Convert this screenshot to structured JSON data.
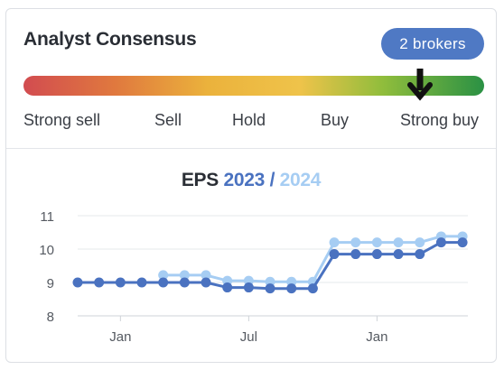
{
  "consensus": {
    "title": "Analyst Consensus",
    "brokers_label": "2  brokers",
    "scale_labels": [
      "Strong sell",
      "Sell",
      "Hold",
      "Buy",
      "Strong buy"
    ],
    "marker_position": 0.865,
    "marker_icon": "arrow-down-icon"
  },
  "eps": {
    "title_prefix": "EPS",
    "series_1_label": "2023",
    "separator": " / ",
    "series_2_label": "2024"
  },
  "chart_data": {
    "type": "line",
    "title": "EPS 2023 / 2024",
    "xlabel": "",
    "ylabel": "",
    "ylim": [
      8,
      11
    ],
    "yticks": [
      8,
      9,
      10,
      11
    ],
    "xticks": [
      {
        "label": "Jan",
        "x": 2
      },
      {
        "label": "Jul",
        "x": 8
      },
      {
        "label": "Jan",
        "x": 14
      }
    ],
    "grid": true,
    "series": [
      {
        "name": "2023",
        "color": "#4a72c0",
        "x": [
          0,
          1,
          2,
          3,
          4,
          5,
          6,
          7,
          8,
          9,
          10,
          11,
          12,
          13,
          14,
          15,
          16,
          17,
          18
        ],
        "values": [
          9.0,
          9.0,
          9.0,
          9.0,
          9.0,
          9.0,
          9.0,
          8.85,
          8.85,
          8.82,
          8.82,
          8.82,
          9.85,
          9.85,
          9.85,
          9.85,
          9.85,
          10.2,
          10.2
        ]
      },
      {
        "name": "2024",
        "color": "#a6cdf3",
        "x": [
          4,
          5,
          6,
          7,
          8,
          9,
          10,
          11,
          12,
          13,
          14,
          15,
          16,
          17,
          18
        ],
        "values": [
          9.22,
          9.22,
          9.22,
          9.05,
          9.05,
          9.02,
          9.02,
          9.02,
          10.2,
          10.2,
          10.2,
          10.2,
          10.2,
          10.38,
          10.38
        ]
      }
    ]
  }
}
